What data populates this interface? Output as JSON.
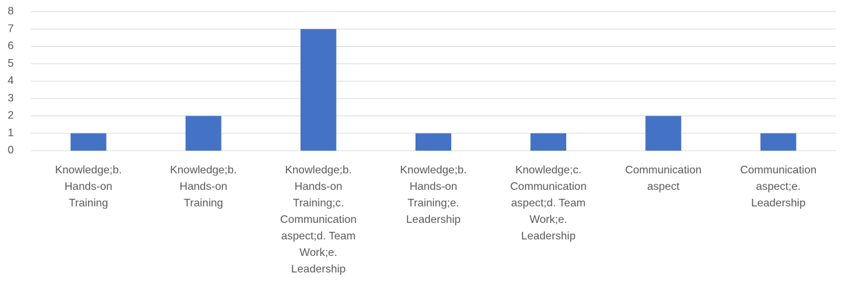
{
  "chart_data": {
    "type": "bar",
    "categories": [
      "Knowledge;b. Hands-on Training",
      "Knowledge;b. Hands-on Training",
      "Knowledge;b. Hands-on Training;c. Communication aspect;d. Team Work;e. Leadership",
      "Knowledge;b. Hands-on Training;e. Leadership",
      "Knowledge;c. Communication aspect;d. Team Work;e. Leadership",
      "Communication aspect",
      "Communication aspect;e. Leadership"
    ],
    "values": [
      1,
      2,
      7,
      1,
      1,
      2,
      1
    ],
    "color": "#4472c4",
    "ylim": [
      0,
      8
    ],
    "yticks": [
      0,
      1,
      2,
      3,
      4,
      5,
      6,
      7,
      8
    ],
    "grid": true
  }
}
